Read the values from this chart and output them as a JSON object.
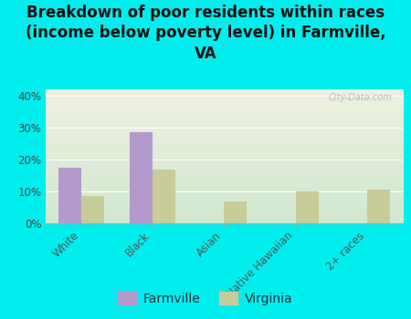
{
  "title": "Breakdown of poor residents within races\n(income below poverty level) in Farmville,\nVA",
  "categories": [
    "White",
    "Black",
    "Asian",
    "Native Hawaiian",
    "2+ races"
  ],
  "farmville_values": [
    17.5,
    28.5,
    0,
    0,
    0
  ],
  "virginia_values": [
    8.5,
    17.0,
    7.0,
    10.0,
    10.5
  ],
  "farmville_color": "#b399cc",
  "virginia_color": "#c8cc99",
  "bg_color": "#00eeee",
  "plot_bg_top": "#eef0e0",
  "plot_bg_bottom": "#d0e8d0",
  "ylim": [
    0,
    42
  ],
  "yticks": [
    0,
    10,
    20,
    30,
    40
  ],
  "ytick_labels": [
    "0%",
    "10%",
    "20%",
    "30%",
    "40%"
  ],
  "bar_width": 0.32,
  "title_fontsize": 12,
  "tick_fontsize": 8.5,
  "legend_fontsize": 10,
  "watermark": "City-Data.com"
}
